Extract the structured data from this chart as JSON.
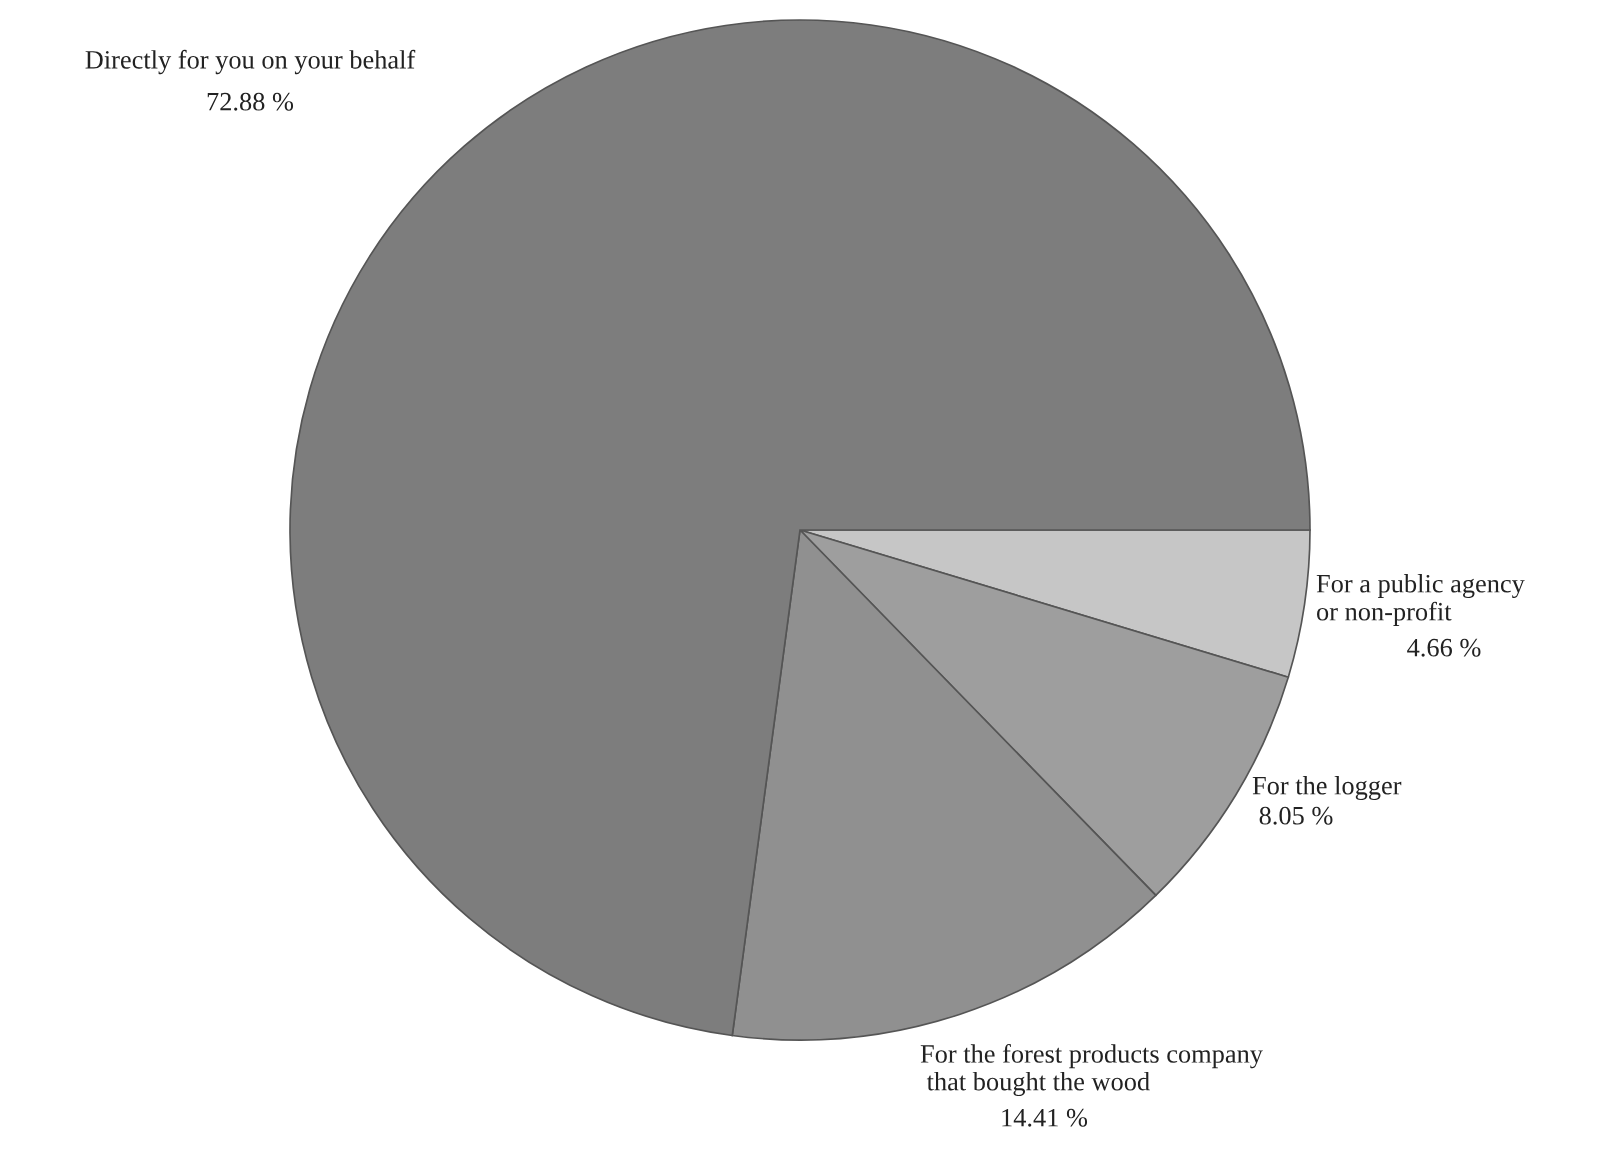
{
  "chart_data": {
    "type": "pie",
    "categories": [
      "For a public agency\nor non-profit",
      "For the logger",
      "For the forest products company\n that bought the wood",
      "Directly for you on your behalf"
    ],
    "values": [
      4.66,
      8.05,
      14.41,
      72.88
    ],
    "value_labels": [
      "4.66 %",
      "8.05 %",
      "14.41 %",
      "72.88 %"
    ],
    "colors": [
      "#c6c6c6",
      "#9e9e9e",
      "#909090",
      "#7d7d7d"
    ]
  }
}
